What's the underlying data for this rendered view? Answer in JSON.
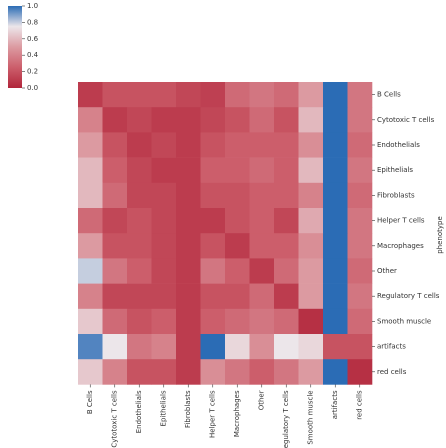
{
  "chart_data": {
    "type": "heatmap",
    "ylabel": "phenotype",
    "rows": [
      "B Cells",
      "Cytotoxic T cells",
      "Endothelials",
      "Epithelials",
      "Fibroblasts",
      "Helper T cells",
      "Macrophages",
      "Other",
      "Regulatory T cells",
      "Smooth muscle",
      "artifacts",
      "red cells"
    ],
    "columns": [
      "B Cells",
      "Cytotoxic T cells",
      "Endothelials",
      "Epithelials",
      "Fibroblasts",
      "Helper T cells",
      "Macrophages",
      "Other",
      "Regulatory T cells",
      "Smooth muscle",
      "artifacts",
      "red cells"
    ],
    "values": [
      [
        0.1,
        0.2,
        0.2,
        0.2,
        0.15,
        0.12,
        0.3,
        0.35,
        0.3,
        0.5,
        1.0,
        0.35
      ],
      [
        0.4,
        0.1,
        0.15,
        0.1,
        0.1,
        0.15,
        0.2,
        0.3,
        0.2,
        0.6,
        1.0,
        0.35
      ],
      [
        0.5,
        0.2,
        0.1,
        0.15,
        0.1,
        0.2,
        0.25,
        0.25,
        0.25,
        0.45,
        1.0,
        0.3
      ],
      [
        0.6,
        0.25,
        0.15,
        0.1,
        0.1,
        0.25,
        0.25,
        0.3,
        0.25,
        0.6,
        1.0,
        0.35
      ],
      [
        0.6,
        0.3,
        0.15,
        0.15,
        0.1,
        0.2,
        0.2,
        0.25,
        0.25,
        0.4,
        1.0,
        0.3
      ],
      [
        0.3,
        0.15,
        0.2,
        0.15,
        0.1,
        0.1,
        0.2,
        0.25,
        0.15,
        0.55,
        1.0,
        0.35
      ],
      [
        0.5,
        0.2,
        0.2,
        0.15,
        0.1,
        0.2,
        0.1,
        0.25,
        0.25,
        0.45,
        1.0,
        0.35
      ],
      [
        0.8,
        0.35,
        0.25,
        0.15,
        0.1,
        0.35,
        0.25,
        0.1,
        0.3,
        0.5,
        1.0,
        0.3
      ],
      [
        0.4,
        0.15,
        0.15,
        0.15,
        0.1,
        0.2,
        0.2,
        0.3,
        0.1,
        0.5,
        1.0,
        0.35
      ],
      [
        0.65,
        0.3,
        0.2,
        0.25,
        0.1,
        0.25,
        0.3,
        0.35,
        0.3,
        0.05,
        1.0,
        0.3
      ],
      [
        0.95,
        0.75,
        0.35,
        0.4,
        0.1,
        1.0,
        0.7,
        0.45,
        0.75,
        0.7,
        0.2,
        0.2
      ],
      [
        0.65,
        0.4,
        0.2,
        0.2,
        0.1,
        0.45,
        0.35,
        0.25,
        0.35,
        0.5,
        1.0,
        0.05
      ]
    ],
    "colormap": [
      "#b1253a",
      "#cc5e6b",
      "#dc9aa1",
      "#ece6ea",
      "#2b6cb5"
    ],
    "clim": [
      0,
      1
    ],
    "cticks": [
      {
        "value": 0,
        "label": "0.0"
      },
      {
        "value": 0.2,
        "label": "0.2"
      },
      {
        "value": 0.4,
        "label": "0.4"
      },
      {
        "value": 0.6,
        "label": "0.6"
      },
      {
        "value": 0.8,
        "label": "0.8"
      },
      {
        "value": 1,
        "label": "1.0"
      }
    ]
  }
}
